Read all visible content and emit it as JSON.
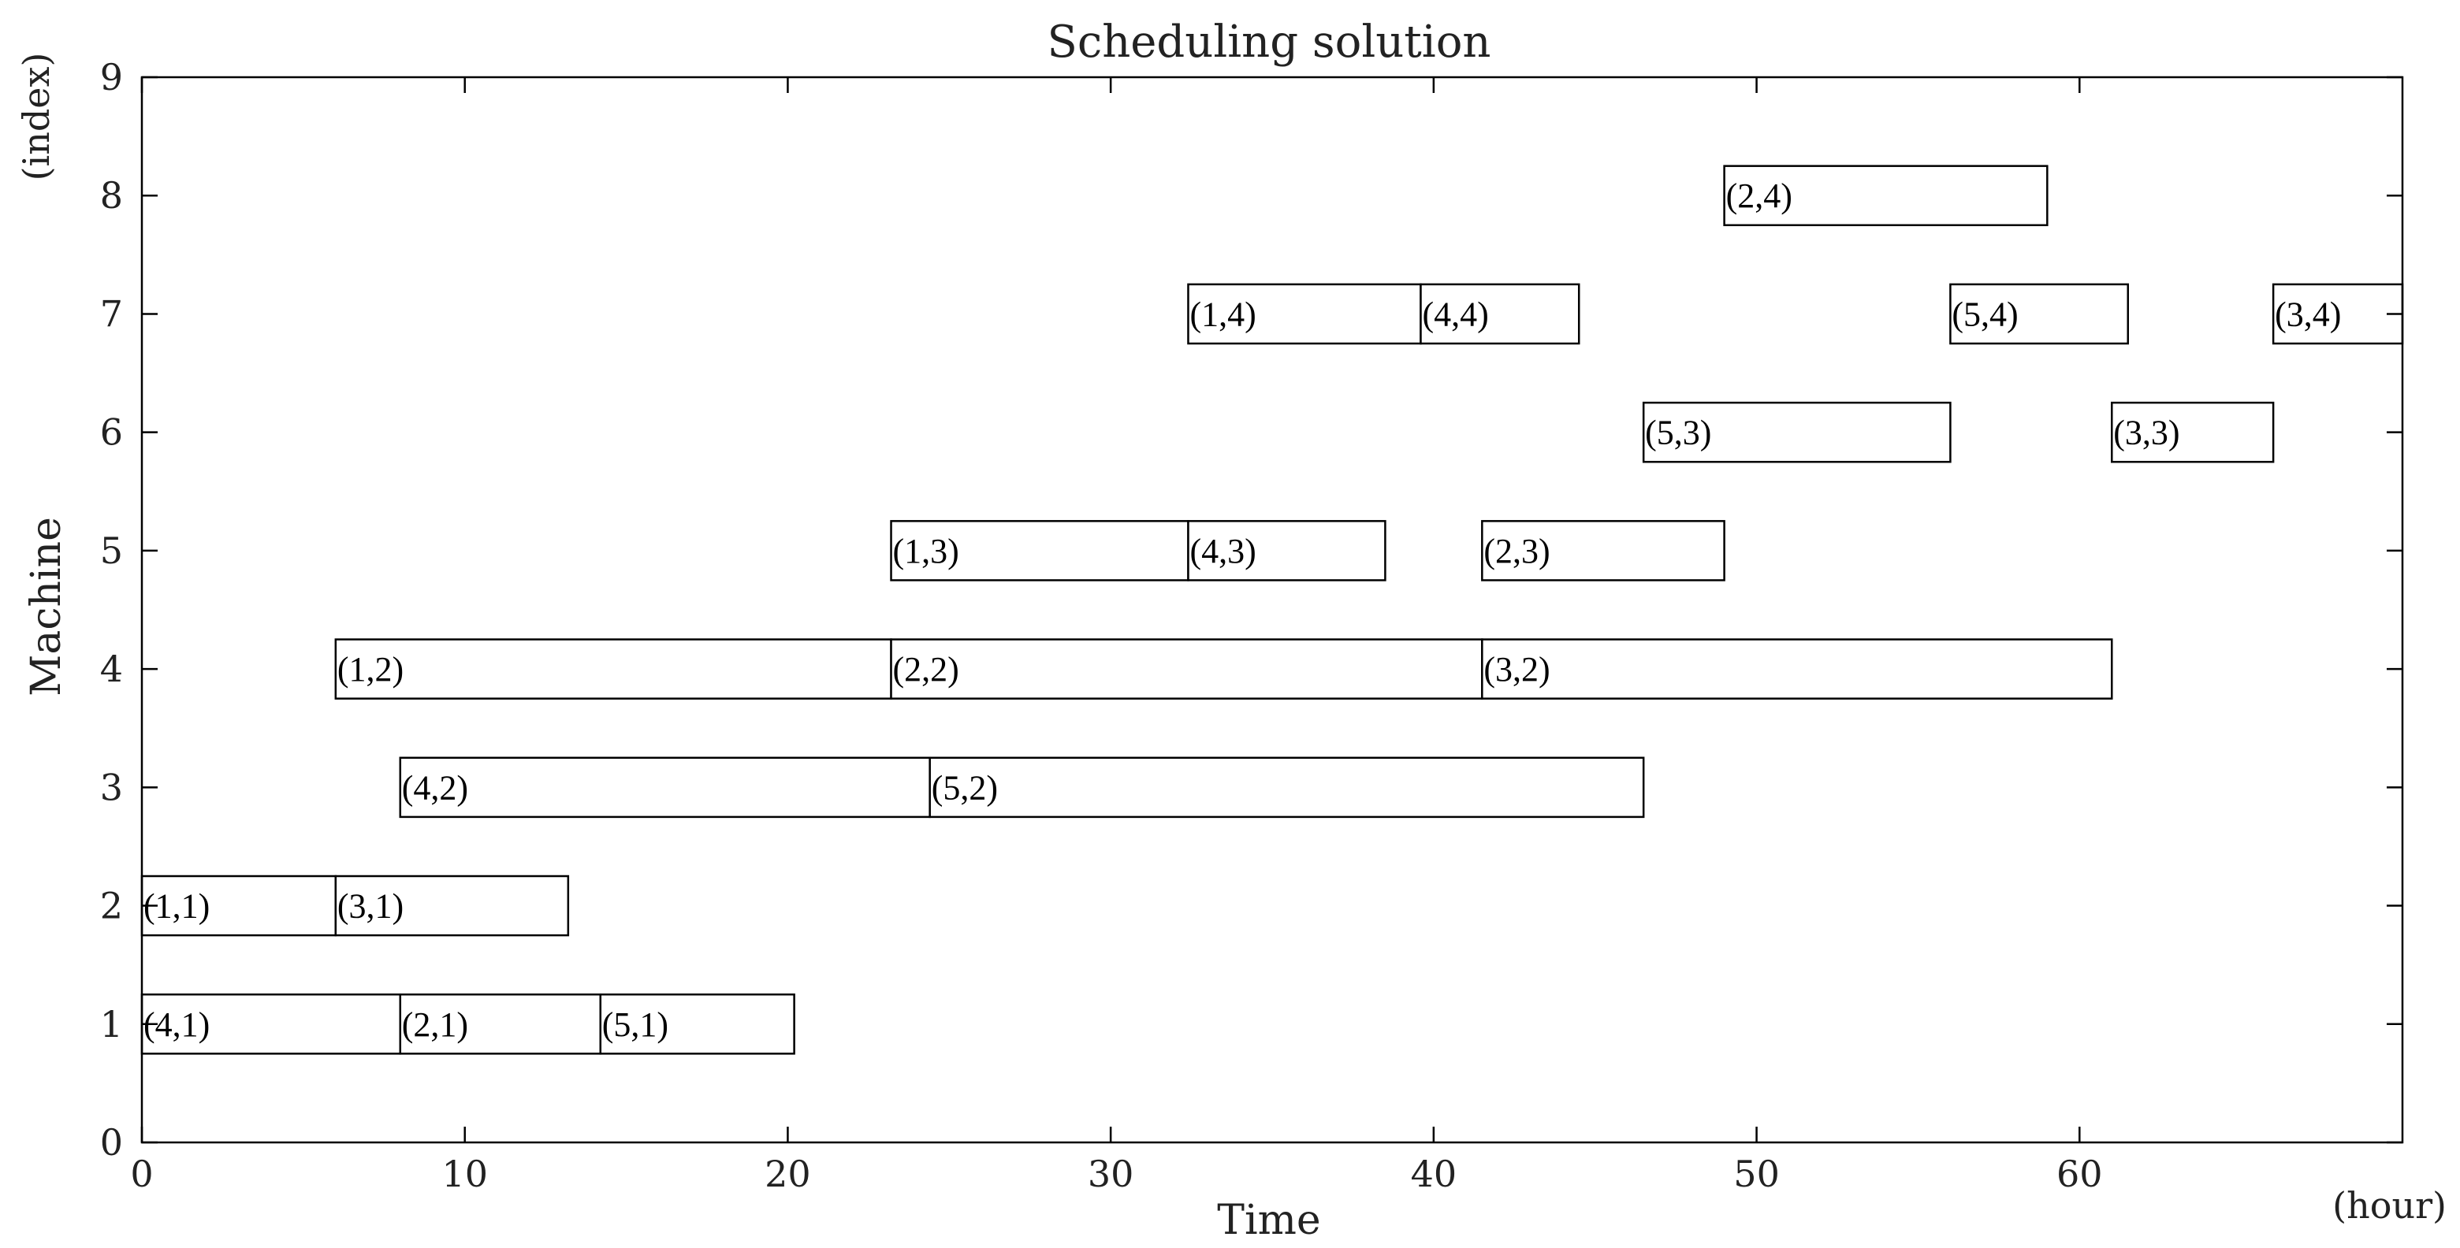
{
  "chart_data": {
    "type": "gantt",
    "title": "Scheduling solution",
    "xlabel": "Time",
    "x_unit": "(hour)",
    "ylabel": "Machine",
    "y_unit": "(index)",
    "xlim": [
      0,
      70
    ],
    "ylim": [
      0,
      9
    ],
    "xticks": [
      0,
      10,
      20,
      30,
      40,
      50,
      60
    ],
    "yticks": [
      0,
      1,
      2,
      3,
      4,
      5,
      6,
      7,
      8,
      9
    ],
    "bar_height": 0.5,
    "tasks": [
      {
        "label": "(4,1)",
        "machine": 1,
        "start": 0,
        "end": 8
      },
      {
        "label": "(2,1)",
        "machine": 1,
        "start": 8,
        "end": 14.2
      },
      {
        "label": "(5,1)",
        "machine": 1,
        "start": 14.2,
        "end": 20.2
      },
      {
        "label": "(1,1)",
        "machine": 2,
        "start": 0,
        "end": 6
      },
      {
        "label": "(3,1)",
        "machine": 2,
        "start": 6,
        "end": 13.2
      },
      {
        "label": "(4,2)",
        "machine": 3,
        "start": 8,
        "end": 24.4
      },
      {
        "label": "(5,2)",
        "machine": 3,
        "start": 24.4,
        "end": 46.5
      },
      {
        "label": "(1,2)",
        "machine": 4,
        "start": 6,
        "end": 23.2
      },
      {
        "label": "(2,2)",
        "machine": 4,
        "start": 23.2,
        "end": 41.5
      },
      {
        "label": "(3,2)",
        "machine": 4,
        "start": 41.5,
        "end": 61
      },
      {
        "label": "(1,3)",
        "machine": 5,
        "start": 23.2,
        "end": 32.4
      },
      {
        "label": "(4,3)",
        "machine": 5,
        "start": 32.4,
        "end": 38.5
      },
      {
        "label": "(2,3)",
        "machine": 5,
        "start": 41.5,
        "end": 49
      },
      {
        "label": "(5,3)",
        "machine": 6,
        "start": 46.5,
        "end": 56
      },
      {
        "label": "(3,3)",
        "machine": 6,
        "start": 61,
        "end": 66
      },
      {
        "label": "(1,4)",
        "machine": 7,
        "start": 32.4,
        "end": 39.6
      },
      {
        "label": "(4,4)",
        "machine": 7,
        "start": 39.6,
        "end": 44.5
      },
      {
        "label": "(5,4)",
        "machine": 7,
        "start": 56,
        "end": 61.5
      },
      {
        "label": "(3,4)",
        "machine": 7,
        "start": 66,
        "end": 70
      },
      {
        "label": "(2,4)",
        "machine": 8,
        "start": 49,
        "end": 59
      }
    ]
  }
}
